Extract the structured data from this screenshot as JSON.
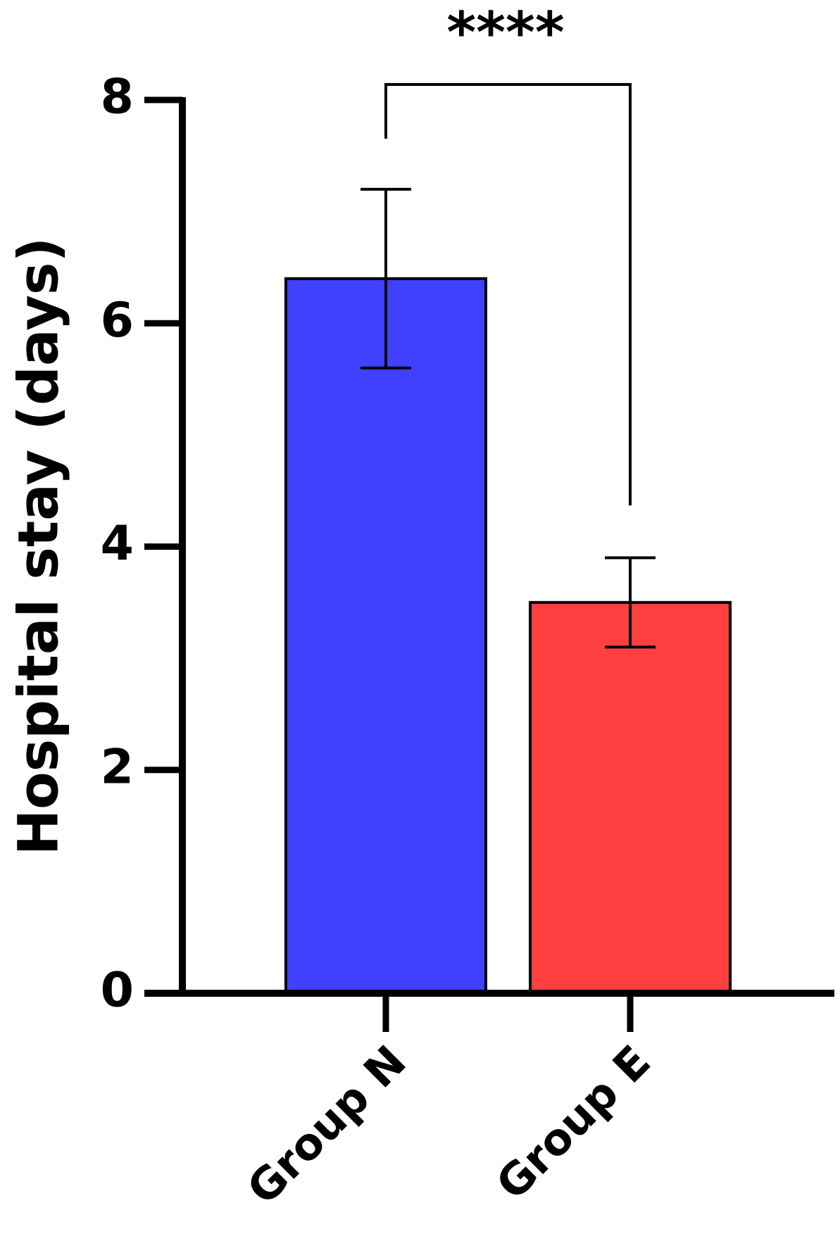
{
  "chart_data": {
    "type": "bar",
    "y_label": "Hospital stay (days)",
    "categories": [
      "Group N",
      "Group E"
    ],
    "values": [
      6.4,
      3.5
    ],
    "errors": [
      0.8,
      0.4
    ],
    "colors": [
      "#4040ff",
      "#ff4040"
    ],
    "ylim": [
      0,
      8
    ],
    "yticks": [
      0,
      2,
      4,
      6,
      8
    ],
    "annotation": "****"
  }
}
